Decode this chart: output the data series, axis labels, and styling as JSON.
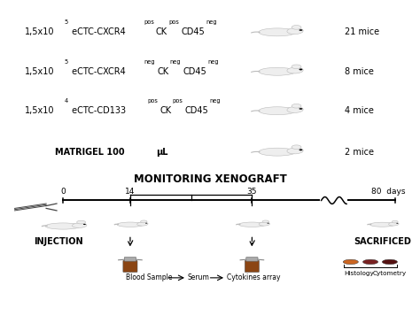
{
  "bg_color": "#ffffff",
  "rows": [
    {
      "exp": "5",
      "gene": "CXCR4",
      "sup2": "pos",
      "sup3": "pos",
      "sup4": "neg",
      "count": "21 mice"
    },
    {
      "exp": "5",
      "gene": "CXCR4",
      "sup2": "neg",
      "sup3": "neg",
      "sup4": "neg",
      "count": "8 mice"
    },
    {
      "exp": "4",
      "gene": "CD133",
      "sup2": "pos",
      "sup3": "pos",
      "sup4": "neg",
      "count": "4 mice"
    },
    {
      "exp": null,
      "gene": null,
      "sup2": null,
      "sup3": null,
      "sup4": null,
      "count": "2 mice"
    }
  ],
  "timeline_title": "MONITORING XENOGRAFT",
  "injection_label": "INJECTION",
  "sacrificed_label": "SACRIFICED",
  "blood_label": "Blood Sample",
  "serum_label": "Serum",
  "cytokines_label": "Cytokines array",
  "histology_label": "Histology",
  "cytometry_label": "Cytometry",
  "mouse_color": "#eeeeee",
  "mouse_edge": "#bbbbbb",
  "organ_colors": [
    "#cc6622",
    "#7a2222",
    "#551111"
  ]
}
